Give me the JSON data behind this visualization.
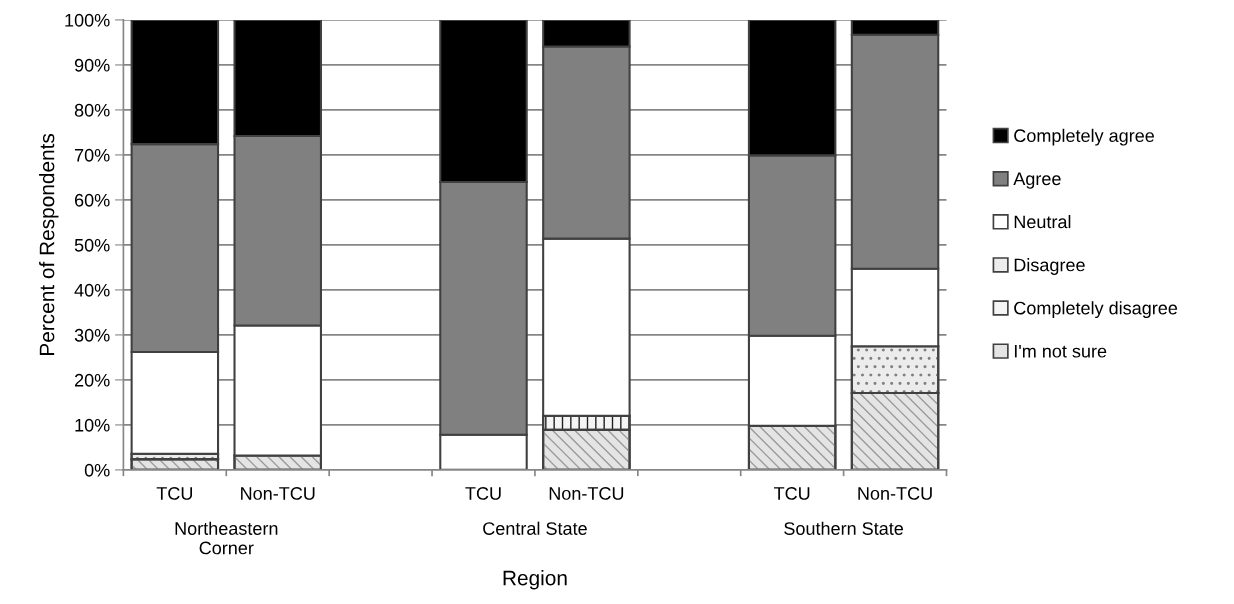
{
  "chart_data": {
    "type": "bar",
    "stacked": true,
    "xlabel": "Region",
    "ylabel": "Percent of Respondents",
    "categories": [
      "TCU",
      "Non-TCU",
      null,
      "TCU",
      "Non-TCU",
      null,
      "TCU",
      "Non-TCU"
    ],
    "series": [
      {
        "name": "I'm not sure",
        "color": "#e4e4e4",
        "values": [
          2.4,
          3.2,
          null,
          0,
          8.9,
          null,
          9.8,
          17.1
        ]
      },
      {
        "name": "Completely disagree",
        "color": "#f4f4f4",
        "values": [
          0,
          0,
          null,
          0,
          3.1,
          null,
          0,
          0
        ]
      },
      {
        "name": "Disagree",
        "color": "#ececec",
        "values": [
          1.2,
          0,
          null,
          0,
          0,
          null,
          0,
          10.4
        ]
      },
      {
        "name": "Neutral",
        "color": "#ffffff",
        "values": [
          22.6,
          28.9,
          null,
          7.8,
          39.4,
          null,
          20.0,
          17.2
        ]
      },
      {
        "name": "Agree",
        "color": "#808080",
        "values": [
          46.2,
          42.1,
          null,
          56.2,
          42.7,
          null,
          40.1,
          52.0
        ]
      },
      {
        "name": "Completely agree",
        "color": "#000000",
        "values": [
          27.6,
          25.8,
          null,
          36.0,
          5.9,
          null,
          30.1,
          3.3
        ]
      }
    ],
    "ylim": [
      0,
      100
    ],
    "yticks": [
      {
        "value": 0,
        "label": "0%"
      },
      {
        "value": 10,
        "label": "10%"
      },
      {
        "value": 20,
        "label": "20%"
      },
      {
        "value": 30,
        "label": "30%"
      },
      {
        "value": 40,
        "label": "40%"
      },
      {
        "value": 50,
        "label": "50%"
      },
      {
        "value": 60,
        "label": "60%"
      },
      {
        "value": 70,
        "label": "70%"
      },
      {
        "value": 80,
        "label": "80%"
      },
      {
        "value": 90,
        "label": "90%"
      },
      {
        "value": 100,
        "label": "100%"
      }
    ],
    "grid": "y",
    "legend": "right",
    "annotations": [
      "Northeastern\nCorner",
      "Central State",
      "Southern State"
    ]
  }
}
